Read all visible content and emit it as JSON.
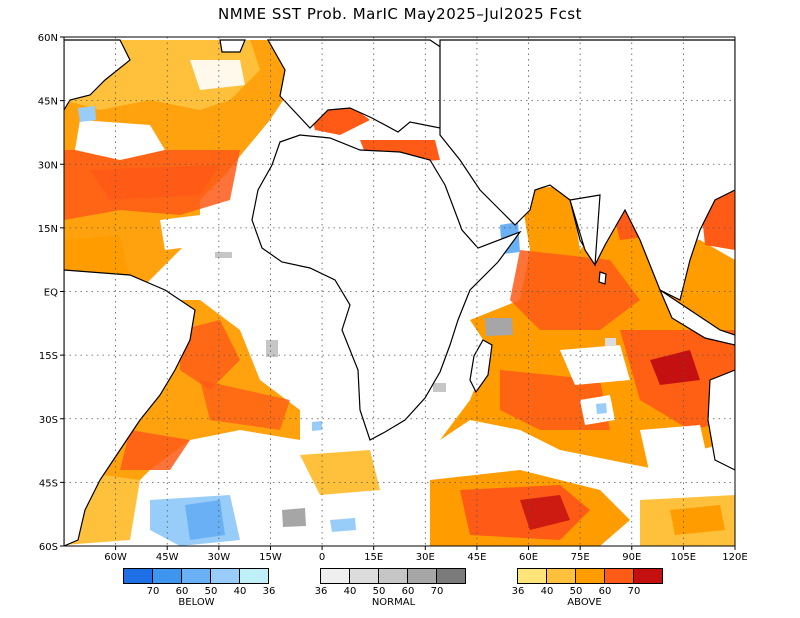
{
  "title": "NMME SST Prob. MarIC  May2025–Jul2025 Fcst",
  "map": {
    "lon_range": [
      -75,
      120
    ],
    "lat_range": [
      -60,
      60
    ],
    "lat_ticks": [
      "60N",
      "45N",
      "30N",
      "15N",
      "EQ",
      "15S",
      "30S",
      "45S",
      "60S"
    ],
    "lon_ticks": [
      "60W",
      "45W",
      "30W",
      "15W",
      "0",
      "15E",
      "30E",
      "45E",
      "60E",
      "75E",
      "90E",
      "105E",
      "120E"
    ],
    "grid": "dotted",
    "land_color": "#ffffff"
  },
  "legends": {
    "below": {
      "name": "BELOW",
      "ticks": [
        "70",
        "60",
        "50",
        "40",
        "36"
      ],
      "colors": [
        "#1f6fe6",
        "#3d95f0",
        "#6ab0f5",
        "#98cdfa",
        "#bff0f8"
      ]
    },
    "normal": {
      "name": "NORMAL",
      "ticks": [
        "36",
        "40",
        "50",
        "60",
        "70"
      ],
      "colors": [
        "#efefef",
        "#dcdcdc",
        "#c6c6c6",
        "#a6a6a6",
        "#7a7a7a"
      ]
    },
    "above": {
      "name": "ABOVE",
      "ticks": [
        "36",
        "40",
        "50",
        "60",
        "70"
      ],
      "colors": [
        "#ffe47a",
        "#ffc13c",
        "#ff9d00",
        "#ff5a16",
        "#c41010"
      ]
    }
  }
}
